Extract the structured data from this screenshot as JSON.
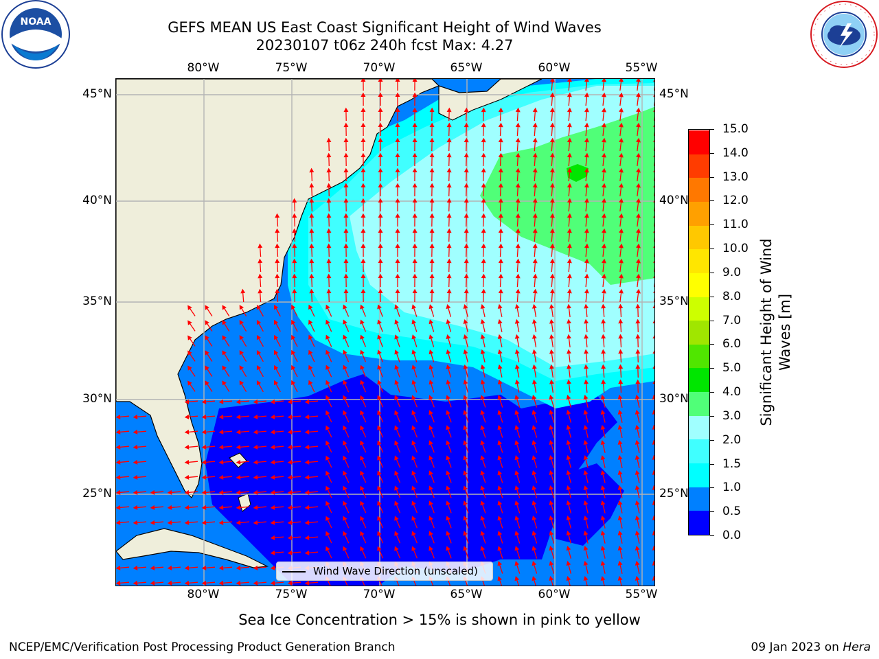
{
  "header": {
    "title_line1": "GEFS MEAN US East Coast Significant Height of Wind Waves",
    "title_line2": "20230107 t06z 240h fcst   Max: 4.27"
  },
  "logos": {
    "left": "NOAA",
    "left_ring_text": "NATIONAL OCEANIC AND ATMOSPHERIC ADMINISTRATION · U.S. DEPARTMENT OF COMMERCE",
    "right_ring_text": "NATIONAL WEATHER SERVICE"
  },
  "map": {
    "lon_ticks": [
      "80°W",
      "75°W",
      "70°W",
      "65°W",
      "60°W",
      "55°W"
    ],
    "lat_ticks": [
      "45°N",
      "40°N",
      "35°N",
      "30°N",
      "25°N"
    ],
    "legend_label": "Wind Wave Direction (unscaled)",
    "colors": {
      "land": "#efeedb",
      "arrow": "#ff0000",
      "grid": "#b4b4b4"
    }
  },
  "colorbar": {
    "title_line1": "Significant Height of Wind",
    "title_line2": "Waves [m]",
    "tick_labels": [
      "0.0",
      "0.5",
      "1.0",
      "1.5",
      "2.0",
      "3.0",
      "4.0",
      "5.0",
      "6.0",
      "7.0",
      "8.0",
      "9.0",
      "10.0",
      "11.0",
      "12.0",
      "13.0",
      "14.0",
      "15.0"
    ],
    "colors": [
      "#0000ff",
      "#0080ff",
      "#00ffff",
      "#40ffff",
      "#a0ffff",
      "#50ff78",
      "#00e600",
      "#50e600",
      "#a0e600",
      "#cdff00",
      "#ffff00",
      "#ffe600",
      "#ffc800",
      "#ffa000",
      "#ff7800",
      "#ff3c00",
      "#ff0000"
    ]
  },
  "notes": {
    "sea_ice": "Sea Ice Concentration > 15% is shown in pink to yellow"
  },
  "footer": {
    "left": "NCEP/EMC/Verification Post Processing Product Generation Branch",
    "right_date": "09 Jan 2023 on",
    "right_host": "Hera"
  }
}
